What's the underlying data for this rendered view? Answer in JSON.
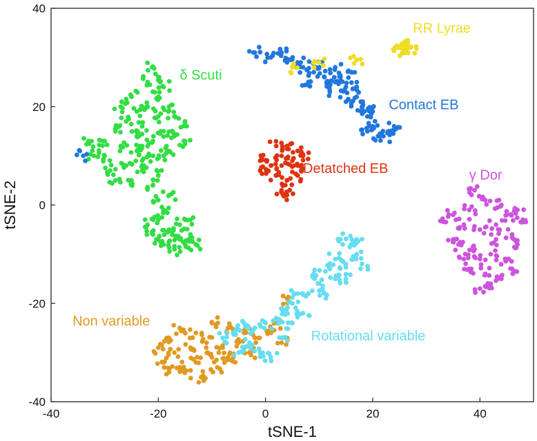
{
  "chart_data": {
    "type": "scatter",
    "xlabel": "tSNE-1",
    "ylabel": "tSNE-2",
    "xlim": [
      -40,
      50
    ],
    "ylim": [
      -40,
      40
    ],
    "xticks": [
      "-40",
      "-20",
      "0",
      "20",
      "40"
    ],
    "yticks": [
      "40",
      "20",
      "0",
      "-20",
      "-40"
    ],
    "grid": false,
    "legend": "none",
    "series": [
      {
        "name": "δ Scuti",
        "color": "#33dd44",
        "label_at": [
          -16,
          25.5
        ],
        "points": [
          [
            -21,
            28
          ],
          [
            -20,
            26
          ],
          [
            -19,
            24
          ],
          [
            -22,
            25
          ],
          [
            -20,
            22
          ],
          [
            -18,
            20
          ],
          [
            -22,
            20
          ],
          [
            -24,
            19
          ],
          [
            -20,
            18
          ],
          [
            -17,
            18
          ],
          [
            -26,
            17
          ],
          [
            -23,
            16
          ],
          [
            -19,
            15
          ],
          [
            -15,
            17
          ],
          [
            -17,
            14
          ],
          [
            -21,
            13
          ],
          [
            -24,
            14
          ],
          [
            -28,
            15
          ],
          [
            -27,
            12
          ],
          [
            -24,
            11
          ],
          [
            -21,
            10
          ],
          [
            -18,
            11
          ],
          [
            -15,
            13
          ],
          [
            -30,
            10
          ],
          [
            -33,
            13
          ],
          [
            -32,
            10
          ],
          [
            -29,
            7
          ],
          [
            -26,
            8
          ],
          [
            -23,
            7
          ],
          [
            -20,
            6
          ],
          [
            -28,
            5
          ],
          [
            -25,
            5
          ],
          [
            -23,
            9
          ],
          [
            -25,
            22
          ],
          [
            -27,
            20
          ],
          [
            -19,
            10
          ],
          [
            -21,
            4
          ],
          [
            -20,
            1
          ],
          [
            -19,
            -1
          ],
          [
            -20,
            -3
          ],
          [
            -18,
            -5
          ],
          [
            -21,
            -6
          ],
          [
            -19,
            -8
          ],
          [
            -16,
            -7
          ],
          [
            -14,
            -6
          ],
          [
            -13,
            -8
          ],
          [
            -16,
            -4
          ],
          [
            -14,
            -3
          ],
          [
            -17,
            -9
          ],
          [
            -20,
            -7
          ],
          [
            -22,
            -4
          ],
          [
            -15,
            -8
          ],
          [
            -18,
            2
          ],
          [
            -23,
            12
          ],
          [
            -30,
            13
          ]
        ]
      },
      {
        "name": "Contact EB",
        "color": "#2277dd",
        "label_at": [
          23,
          19.5
        ],
        "points": [
          [
            -2,
            31
          ],
          [
            1,
            30
          ],
          [
            4,
            29
          ],
          [
            7,
            28
          ],
          [
            9,
            27
          ],
          [
            11,
            26
          ],
          [
            13,
            25
          ],
          [
            15,
            24
          ],
          [
            17,
            22
          ],
          [
            18,
            20
          ],
          [
            19,
            18
          ],
          [
            20,
            16
          ],
          [
            21,
            14
          ],
          [
            23,
            15
          ],
          [
            24,
            16
          ],
          [
            10,
            28
          ],
          [
            13,
            28
          ],
          [
            16,
            27
          ],
          [
            8,
            25
          ],
          [
            12,
            23
          ],
          [
            15,
            21
          ],
          [
            17,
            24
          ],
          [
            14,
            26
          ],
          [
            19,
            15
          ],
          [
            6,
            29
          ],
          [
            3,
            31
          ],
          [
            20,
            19
          ],
          [
            22,
            14
          ],
          [
            -34,
            10
          ]
        ]
      },
      {
        "name": "RR Lyrae",
        "color": "#eedd22",
        "label_at": [
          27.5,
          35
        ],
        "points": [
          [
            25,
            32
          ],
          [
            26,
            32.5
          ],
          [
            27,
            32
          ],
          [
            26,
            31.5
          ],
          [
            25.5,
            31.8
          ],
          [
            5,
            28
          ],
          [
            10,
            29
          ],
          [
            17,
            29.5
          ]
        ]
      },
      {
        "name": "Detatched EB",
        "color": "#dd3311",
        "label_at": [
          7,
          6.5
        ],
        "points": [
          [
            2,
            12
          ],
          [
            4,
            12
          ],
          [
            6,
            11
          ],
          [
            7,
            10
          ],
          [
            5,
            9
          ],
          [
            3,
            10
          ],
          [
            1,
            8
          ],
          [
            -1,
            7
          ],
          [
            2,
            6
          ],
          [
            4,
            5
          ],
          [
            3,
            3
          ],
          [
            4,
            2
          ],
          [
            6,
            8
          ],
          [
            6,
            6
          ],
          [
            3,
            8
          ],
          [
            -1,
            9
          ]
        ]
      },
      {
        "name": "γ Dor",
        "color": "#cc55dd",
        "label_at": [
          38,
          5.2
        ],
        "points": [
          [
            39,
            3
          ],
          [
            41,
            1
          ],
          [
            44,
            0
          ],
          [
            47,
            -1
          ],
          [
            35,
            -2
          ],
          [
            37,
            -4
          ],
          [
            40,
            -5
          ],
          [
            43,
            -4
          ],
          [
            46,
            -6
          ],
          [
            48,
            -3
          ],
          [
            36,
            -8
          ],
          [
            39,
            -9
          ],
          [
            42,
            -10
          ],
          [
            45,
            -11
          ],
          [
            47,
            -8
          ],
          [
            38,
            -13
          ],
          [
            41,
            -14
          ],
          [
            44,
            -15
          ],
          [
            40,
            -17
          ],
          [
            42,
            -16
          ],
          [
            33,
            -3
          ],
          [
            35,
            -7
          ],
          [
            38,
            -1
          ],
          [
            46,
            -13
          ],
          [
            43,
            -7
          ],
          [
            40,
            -11
          ],
          [
            37,
            -11
          ],
          [
            45,
            -2
          ]
        ]
      },
      {
        "name": "Non variable",
        "color": "#e09a22",
        "label_at": [
          -36,
          -24.5
        ],
        "points": [
          [
            -18,
            -27
          ],
          [
            -16,
            -25
          ],
          [
            -13,
            -26
          ],
          [
            -10,
            -24
          ],
          [
            -7,
            -25
          ],
          [
            -4,
            -26
          ],
          [
            -20,
            -29
          ],
          [
            -17,
            -30
          ],
          [
            -14,
            -29
          ],
          [
            -11,
            -28
          ],
          [
            -8,
            -29
          ],
          [
            -5,
            -28
          ],
          [
            -2,
            -27
          ],
          [
            -19,
            -32
          ],
          [
            -16,
            -33
          ],
          [
            -13,
            -32
          ],
          [
            -10,
            -31
          ],
          [
            -7,
            -31
          ],
          [
            -15,
            -34
          ],
          [
            -18,
            -34
          ],
          [
            -12,
            -35
          ],
          [
            -9,
            -33
          ],
          [
            -6,
            -31
          ],
          [
            -3,
            -30
          ],
          [
            1,
            -26
          ],
          [
            3,
            -28
          ],
          [
            2,
            -24
          ],
          [
            4,
            -19
          ]
        ]
      },
      {
        "name": "Rotational variable",
        "color": "#66ddf0",
        "label_at": [
          8.5,
          -27.5
        ],
        "points": [
          [
            14,
            -7
          ],
          [
            16,
            -8
          ],
          [
            17,
            -10
          ],
          [
            15,
            -12
          ],
          [
            12,
            -13
          ],
          [
            13,
            -15
          ],
          [
            10,
            -16
          ],
          [
            8,
            -18
          ],
          [
            6,
            -18
          ],
          [
            5,
            -20
          ],
          [
            7,
            -22
          ],
          [
            4,
            -22
          ],
          [
            2,
            -23
          ],
          [
            0,
            -24
          ],
          [
            -2,
            -25
          ],
          [
            -4,
            -24
          ],
          [
            -6,
            -26
          ],
          [
            -3,
            -28
          ],
          [
            -1,
            -30
          ],
          [
            1,
            -31
          ],
          [
            -5,
            -30
          ],
          [
            3,
            -27
          ],
          [
            9,
            -14
          ],
          [
            11,
            -18
          ],
          [
            13,
            -11
          ],
          [
            15,
            -15
          ],
          [
            5,
            -24
          ],
          [
            -8,
            -27
          ],
          [
            18,
            -12
          ],
          [
            17,
            -7
          ]
        ]
      }
    ]
  }
}
